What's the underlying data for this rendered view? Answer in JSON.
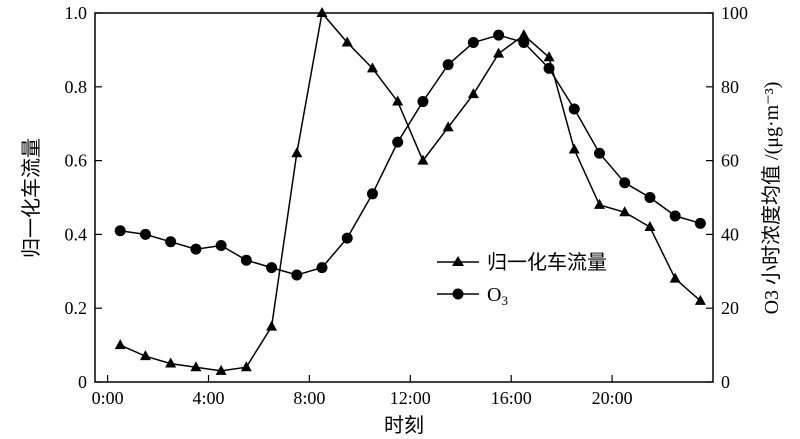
{
  "chart_data": {
    "type": "line",
    "xlabel": "时刻",
    "ylabel_left": "归一化车流量",
    "ylabel_right": "O3 小时浓度均值 /(μg·m⁻³)",
    "x_ticks": [
      "0:00",
      "4:00",
      "8:00",
      "12:00",
      "16:00",
      "20:00"
    ],
    "x_tick_hours": [
      0,
      4,
      8,
      12,
      16,
      20
    ],
    "xlim_hours": [
      -0.5,
      24
    ],
    "y_left_ticks": [
      "0",
      "0.2",
      "0.4",
      "0.6",
      "0.8",
      "1.0"
    ],
    "y_left_tick_values": [
      0,
      0.2,
      0.4,
      0.6,
      0.8,
      1.0
    ],
    "ylim_left": [
      0,
      1.0
    ],
    "y_right_ticks": [
      "0",
      "20",
      "40",
      "60",
      "80",
      "100"
    ],
    "y_right_tick_values": [
      0,
      20,
      40,
      60,
      80,
      100
    ],
    "ylim_right": [
      0,
      100
    ],
    "legend_position": "center-right",
    "series": [
      {
        "name": "归一化车流量",
        "axis": "left",
        "marker": "triangle",
        "x_hours": [
          0.5,
          1.5,
          2.5,
          3.5,
          4.5,
          5.5,
          6.5,
          7.5,
          8.5,
          9.5,
          10.5,
          11.5,
          12.5,
          13.5,
          14.5,
          15.5,
          16.5,
          17.5,
          18.5,
          19.5,
          20.5,
          21.5,
          22.5,
          23.5
        ],
        "values": [
          0.1,
          0.07,
          0.05,
          0.04,
          0.03,
          0.04,
          0.15,
          0.62,
          1.0,
          0.92,
          0.85,
          0.76,
          0.6,
          0.69,
          0.78,
          0.89,
          0.94,
          0.88,
          0.63,
          0.48,
          0.46,
          0.42,
          0.28,
          0.22
        ]
      },
      {
        "name": "O3",
        "name_main": "O",
        "name_sub": "3",
        "axis": "right",
        "marker": "circle",
        "x_hours": [
          0.5,
          1.5,
          2.5,
          3.5,
          4.5,
          5.5,
          6.5,
          7.5,
          8.5,
          9.5,
          10.5,
          11.5,
          12.5,
          13.5,
          14.5,
          15.5,
          16.5,
          17.5,
          18.5,
          19.5,
          20.5,
          21.5,
          22.5,
          23.5
        ],
        "values": [
          41,
          40,
          38,
          36,
          37,
          33,
          31,
          29,
          31,
          39,
          51,
          65,
          76,
          86,
          92,
          94,
          92,
          85,
          74,
          62,
          54,
          50,
          45,
          43
        ]
      }
    ]
  }
}
